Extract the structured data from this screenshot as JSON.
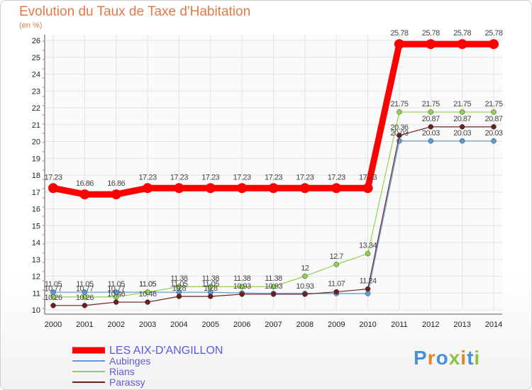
{
  "title": "Evolution du Taux de Taxe d'Habitation",
  "subtitle": "(en %)",
  "logo": "Proxiti",
  "colors": {
    "title": "#e07a4a",
    "series": [
      "#ff0000",
      "#5b9bd5",
      "#8fd14f",
      "#6b1f1f"
    ],
    "legend_text": "#5b5bd5"
  },
  "chart_data": {
    "type": "line",
    "x": [
      2000,
      2001,
      2002,
      2003,
      2004,
      2005,
      2006,
      2007,
      2008,
      2009,
      2010,
      2011,
      2012,
      2013,
      2014
    ],
    "ylim": [
      10,
      26
    ],
    "yticks": [
      10,
      11,
      12,
      13,
      14,
      15,
      16,
      17,
      18,
      19,
      20,
      21,
      22,
      23,
      24,
      25,
      26
    ],
    "grid": true,
    "legend": "bottom-left",
    "series": [
      {
        "name": "LES AIX-D'ANGILLON",
        "values": [
          17.23,
          16.86,
          16.86,
          17.23,
          17.23,
          17.23,
          17.23,
          17.23,
          17.23,
          17.23,
          17.23,
          25.78,
          25.78,
          25.78,
          25.78
        ],
        "labels": [
          "17.23",
          "16.86",
          "16.86",
          "17.23",
          "17.23",
          "17.23",
          "17.23",
          "17.23",
          "17.23",
          "17.23",
          "17.23",
          "25.78",
          "25.78",
          "25.78",
          "25.78"
        ]
      },
      {
        "name": "Aubinges",
        "values": [
          11.05,
          11.05,
          11.05,
          11.05,
          11.05,
          11.05,
          11.0,
          10.98,
          10.98,
          10.97,
          10.97,
          20.03,
          20.03,
          20.03,
          20.03
        ],
        "labels": [
          "11.05",
          "11.05",
          "11.05",
          "11.05",
          "11.05",
          "11.05",
          "",
          "",
          "",
          "",
          "",
          "20.03",
          "20.03",
          "20.03",
          "20.03"
        ]
      },
      {
        "name": "Rians",
        "values": [
          10.77,
          10.77,
          10.77,
          11.05,
          11.38,
          11.38,
          11.38,
          11.38,
          12.0,
          12.7,
          13.34,
          21.75,
          21.75,
          21.75,
          21.75
        ],
        "labels": [
          "10.77",
          "10.77",
          "10.77",
          "11.05",
          "11.38",
          "11.38",
          "11.38",
          "11.38",
          "12",
          "12.7",
          "13.34",
          "21.75",
          "21.75",
          "21.75",
          "21.75"
        ]
      },
      {
        "name": "Parassy",
        "values": [
          10.26,
          10.26,
          10.46,
          10.46,
          10.8,
          10.8,
          10.93,
          10.93,
          10.93,
          11.07,
          11.24,
          20.36,
          20.87,
          20.87,
          20.87
        ],
        "labels": [
          "10.26",
          "10.26",
          "10.46",
          "10.46",
          "10.8",
          "10.8",
          "10.93",
          "10.93",
          "10.93",
          "11.07",
          "11.24",
          "20.36",
          "20.87",
          "20.87",
          "20.87"
        ]
      }
    ]
  }
}
